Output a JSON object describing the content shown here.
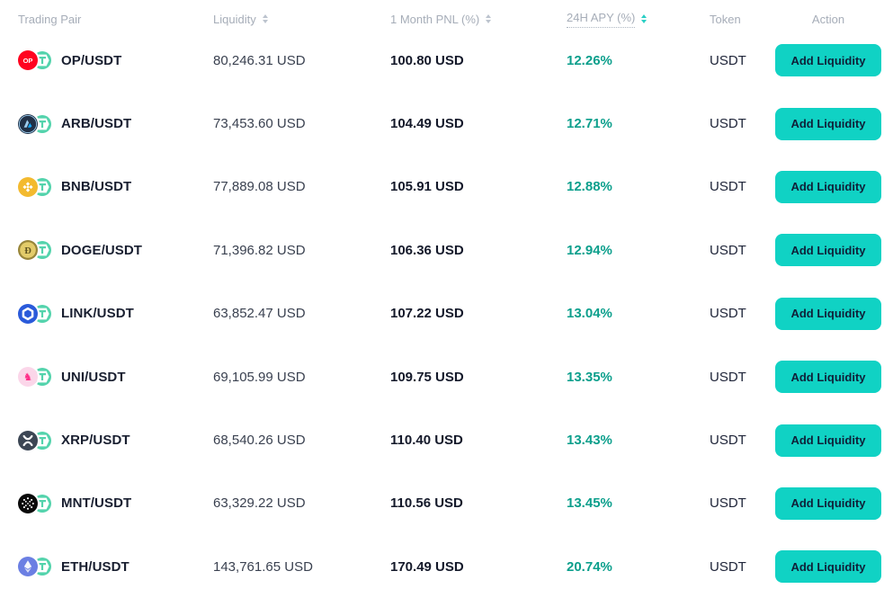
{
  "colors": {
    "accent": "#10D2C4",
    "apy_text": "#0C9F8C",
    "sort_active": "#2ACFC5",
    "header_text": "#A6ADB8",
    "pair_text": "#191F30"
  },
  "header": {
    "columns": [
      {
        "label": "Trading Pair",
        "sortable": false
      },
      {
        "label": "Liquidity",
        "sortable": true,
        "active": false
      },
      {
        "label": "1 Month PNL (%)",
        "sortable": true,
        "active": false
      },
      {
        "label": "24H APY (%)",
        "sortable": true,
        "active": true,
        "underlined": true
      },
      {
        "label": "Token",
        "sortable": false
      },
      {
        "label": "Action",
        "sortable": false
      }
    ]
  },
  "action_button_label": "Add Liquidity",
  "rows": [
    {
      "pair": "OP/USDT",
      "base_symbol": "OP",
      "base_icon": "op-icon",
      "quote_icon": "usdt-icon",
      "liquidity": "80,246.31 USD",
      "pnl": "100.80 USD",
      "apy": "12.26%",
      "token": "USDT"
    },
    {
      "pair": "ARB/USDT",
      "base_symbol": "ARB",
      "base_icon": "arb-icon",
      "quote_icon": "usdt-icon",
      "liquidity": "73,453.60 USD",
      "pnl": "104.49 USD",
      "apy": "12.71%",
      "token": "USDT"
    },
    {
      "pair": "BNB/USDT",
      "base_symbol": "BNB",
      "base_icon": "bnb-icon",
      "quote_icon": "usdt-icon",
      "liquidity": "77,889.08 USD",
      "pnl": "105.91 USD",
      "apy": "12.88%",
      "token": "USDT"
    },
    {
      "pair": "DOGE/USDT",
      "base_symbol": "DOGE",
      "base_icon": "doge-icon",
      "quote_icon": "usdt-icon",
      "liquidity": "71,396.82 USD",
      "pnl": "106.36 USD",
      "apy": "12.94%",
      "token": "USDT"
    },
    {
      "pair": "LINK/USDT",
      "base_symbol": "LINK",
      "base_icon": "link-icon",
      "quote_icon": "usdt-icon",
      "liquidity": "63,852.47 USD",
      "pnl": "107.22 USD",
      "apy": "13.04%",
      "token": "USDT"
    },
    {
      "pair": "UNI/USDT",
      "base_symbol": "UNI",
      "base_icon": "uni-icon",
      "quote_icon": "usdt-icon",
      "liquidity": "69,105.99 USD",
      "pnl": "109.75 USD",
      "apy": "13.35%",
      "token": "USDT"
    },
    {
      "pair": "XRP/USDT",
      "base_symbol": "XRP",
      "base_icon": "xrp-icon",
      "quote_icon": "usdt-icon",
      "liquidity": "68,540.26 USD",
      "pnl": "110.40 USD",
      "apy": "13.43%",
      "token": "USDT"
    },
    {
      "pair": "MNT/USDT",
      "base_symbol": "MNT",
      "base_icon": "mnt-icon",
      "quote_icon": "usdt-icon",
      "liquidity": "63,329.22 USD",
      "pnl": "110.56 USD",
      "apy": "13.45%",
      "token": "USDT"
    },
    {
      "pair": "ETH/USDT",
      "base_symbol": "ETH",
      "base_icon": "eth-icon",
      "quote_icon": "usdt-icon",
      "liquidity": "143,761.65 USD",
      "pnl": "170.49 USD",
      "apy": "20.74%",
      "token": "USDT"
    }
  ]
}
